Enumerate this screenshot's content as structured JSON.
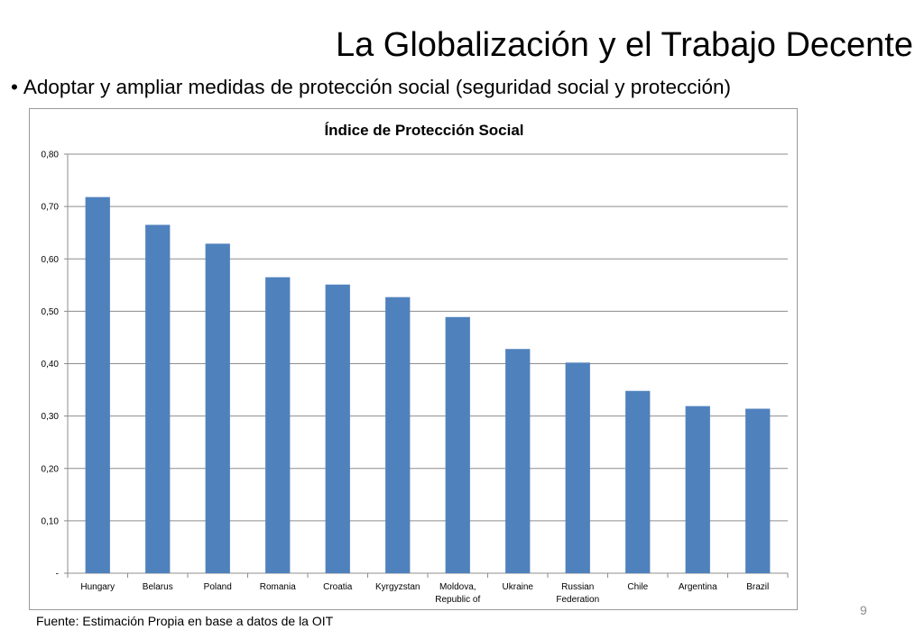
{
  "slide": {
    "title": "La Globalización y el Trabajo Decente",
    "bullet_marker": "•",
    "bullet": "Adoptar y ampliar medidas de protección social (seguridad social y protección)",
    "source": "Fuente: Estimación Propia en base a datos de la OIT",
    "page_number": "9"
  },
  "chart_data": {
    "type": "bar",
    "title": "Índice de Protección Social",
    "categories": [
      "Hungary",
      "Belarus",
      "Poland",
      "Romania",
      "Croatia",
      "Kyrgyzstan",
      "Moldova, Republic of",
      "Ukraine",
      "Russian Federation",
      "Chile",
      "Argentina",
      "Brazil"
    ],
    "category_lines": [
      [
        "Hungary"
      ],
      [
        "Belarus"
      ],
      [
        "Poland"
      ],
      [
        "Romania"
      ],
      [
        "Croatia"
      ],
      [
        "Kyrgyzstan"
      ],
      [
        "Moldova,",
        "Republic of"
      ],
      [
        "Ukraine"
      ],
      [
        "Russian",
        "Federation"
      ],
      [
        "Chile"
      ],
      [
        "Argentina"
      ],
      [
        "Brazil"
      ]
    ],
    "values": [
      0.718,
      0.665,
      0.629,
      0.565,
      0.551,
      0.527,
      0.489,
      0.428,
      0.402,
      0.348,
      0.319,
      0.314
    ],
    "ylim": [
      0,
      0.8
    ],
    "yticks": [
      0,
      0.1,
      0.2,
      0.3,
      0.4,
      0.5,
      0.6,
      0.7,
      0.8
    ],
    "ytick_labels": [
      "-",
      "0,10",
      "0,20",
      "0,30",
      "0,40",
      "0,50",
      "0,60",
      "0,70",
      "0,80"
    ],
    "bar_color": "#4f81bd",
    "grid": true,
    "legend": "none"
  }
}
